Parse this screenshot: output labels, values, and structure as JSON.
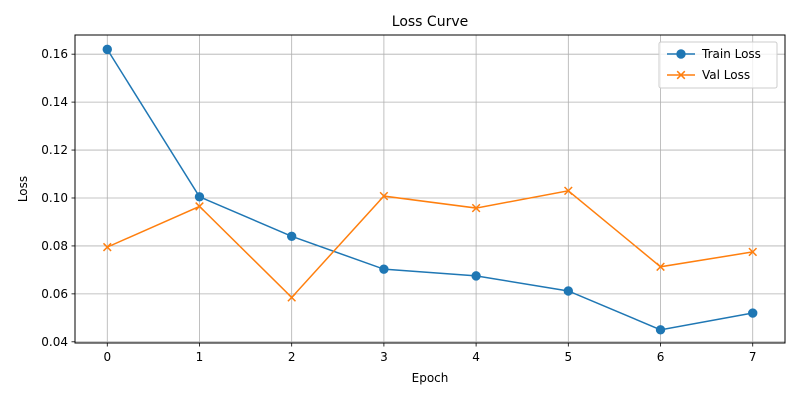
{
  "chart_data": {
    "type": "line",
    "title": "Loss Curve",
    "xlabel": "Epoch",
    "ylabel": "Loss",
    "x": [
      0,
      1,
      2,
      3,
      4,
      5,
      6,
      7
    ],
    "xlim": [
      -0.35,
      7.35
    ],
    "ylim": [
      0.0395,
      0.168
    ],
    "xticks": [
      0,
      1,
      2,
      3,
      4,
      5,
      6,
      7
    ],
    "yticks": [
      0.04,
      0.06,
      0.08,
      0.1,
      0.12,
      0.14,
      0.16
    ],
    "ytick_labels": [
      "0.04",
      "0.06",
      "0.08",
      "0.10",
      "0.12",
      "0.14",
      "0.16"
    ],
    "grid": true,
    "legend_position": "top-right",
    "series": [
      {
        "name": "Train Loss",
        "color": "#1f77b4",
        "marker": "circle",
        "values": [
          0.162,
          0.1005,
          0.084,
          0.0703,
          0.0675,
          0.0612,
          0.045,
          0.052
        ]
      },
      {
        "name": "Val Loss",
        "color": "#ff7f0e",
        "marker": "x",
        "values": [
          0.0795,
          0.0965,
          0.0585,
          0.1008,
          0.0958,
          0.103,
          0.0713,
          0.0775
        ]
      }
    ]
  }
}
